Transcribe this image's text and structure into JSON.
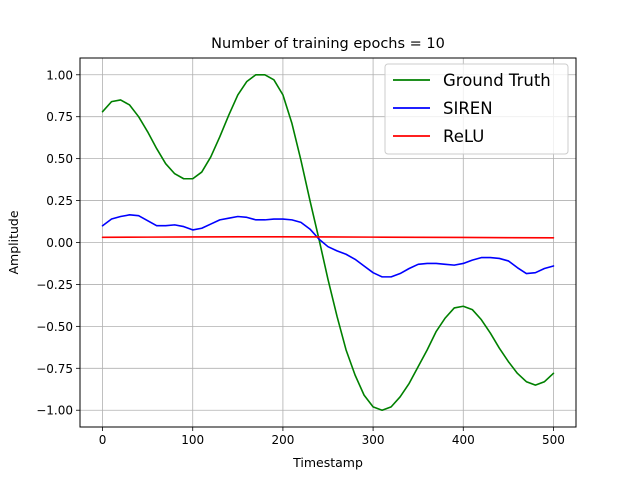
{
  "chart_data": {
    "type": "line",
    "title": "Number of training epochs = 10",
    "xlabel": "Timestamp",
    "ylabel": "Amplitude",
    "xlim": [
      -25,
      525
    ],
    "ylim": [
      -1.1,
      1.1
    ],
    "xticks": [
      0,
      100,
      200,
      300,
      400,
      500
    ],
    "xtick_labels": [
      "0",
      "100",
      "200",
      "300",
      "400",
      "500"
    ],
    "yticks": [
      -1.0,
      -0.75,
      -0.5,
      -0.25,
      0.0,
      0.25,
      0.5,
      0.75,
      1.0
    ],
    "ytick_labels": [
      "−1.00",
      "−0.75",
      "−0.50",
      "−0.25",
      "0.00",
      "0.25",
      "0.50",
      "0.75",
      "1.00"
    ],
    "grid": true,
    "legend_position": "top-right",
    "series": [
      {
        "name": "Ground Truth",
        "color": "#008000",
        "x": [
          0,
          10,
          20,
          30,
          40,
          50,
          60,
          70,
          80,
          90,
          100,
          110,
          120,
          130,
          140,
          150,
          160,
          170,
          180,
          190,
          200,
          210,
          220,
          230,
          240,
          250,
          260,
          270,
          280,
          290,
          300,
          310,
          320,
          330,
          340,
          350,
          360,
          370,
          380,
          390,
          400,
          410,
          420,
          430,
          440,
          450,
          460,
          470,
          480,
          490,
          500
        ],
        "values": [
          0.78,
          0.84,
          0.85,
          0.82,
          0.75,
          0.66,
          0.56,
          0.47,
          0.41,
          0.38,
          0.38,
          0.42,
          0.51,
          0.63,
          0.76,
          0.88,
          0.96,
          1.0,
          1.0,
          0.97,
          0.88,
          0.71,
          0.49,
          0.25,
          0.02,
          -0.22,
          -0.44,
          -0.64,
          -0.79,
          -0.91,
          -0.98,
          -1.0,
          -0.98,
          -0.92,
          -0.84,
          -0.74,
          -0.64,
          -0.53,
          -0.45,
          -0.39,
          -0.38,
          -0.4,
          -0.46,
          -0.54,
          -0.63,
          -0.71,
          -0.78,
          -0.83,
          -0.85,
          -0.83,
          -0.78
        ]
      },
      {
        "name": "SIREN",
        "color": "#0000ff",
        "x": [
          0,
          10,
          20,
          30,
          40,
          50,
          60,
          70,
          80,
          90,
          100,
          110,
          120,
          130,
          140,
          150,
          160,
          170,
          180,
          190,
          200,
          210,
          220,
          230,
          240,
          250,
          260,
          270,
          280,
          290,
          300,
          310,
          320,
          330,
          340,
          350,
          360,
          370,
          380,
          390,
          400,
          410,
          420,
          430,
          440,
          450,
          460,
          470,
          480,
          490,
          500
        ],
        "values": [
          0.1,
          0.14,
          0.155,
          0.165,
          0.16,
          0.13,
          0.1,
          0.1,
          0.105,
          0.095,
          0.075,
          0.085,
          0.11,
          0.135,
          0.145,
          0.155,
          0.15,
          0.135,
          0.135,
          0.14,
          0.14,
          0.135,
          0.12,
          0.08,
          0.02,
          -0.025,
          -0.05,
          -0.07,
          -0.1,
          -0.14,
          -0.18,
          -0.205,
          -0.205,
          -0.185,
          -0.155,
          -0.13,
          -0.125,
          -0.125,
          -0.13,
          -0.135,
          -0.125,
          -0.105,
          -0.09,
          -0.09,
          -0.095,
          -0.11,
          -0.15,
          -0.185,
          -0.18,
          -0.155,
          -0.14
        ]
      },
      {
        "name": "ReLU",
        "color": "#ff0000",
        "x": [
          0,
          50,
          100,
          150,
          200,
          250,
          300,
          350,
          400,
          450,
          500
        ],
        "values": [
          0.031,
          0.032,
          0.033,
          0.034,
          0.034,
          0.033,
          0.032,
          0.031,
          0.03,
          0.029,
          0.028
        ]
      }
    ]
  }
}
